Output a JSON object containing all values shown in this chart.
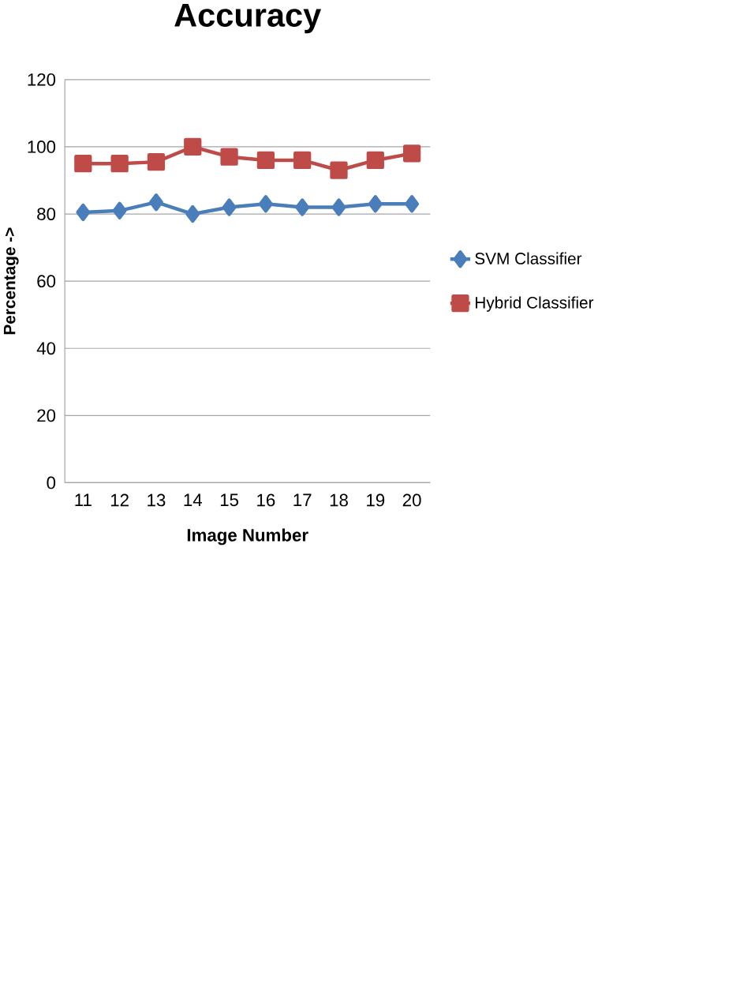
{
  "chart_data": {
    "type": "line",
    "title": "Accuracy",
    "xlabel": "Image Number",
    "ylabel": "Percentage ->",
    "categories": [
      "11",
      "12",
      "13",
      "14",
      "15",
      "16",
      "17",
      "18",
      "19",
      "20"
    ],
    "series": [
      {
        "name": "SVM Classifier",
        "color": "#4a7ebb",
        "marker": "diamond",
        "values": [
          80.5,
          81,
          83.5,
          80,
          82,
          83,
          82,
          82,
          83,
          83
        ]
      },
      {
        "name": "Hybrid Classifier",
        "color": "#be4b48",
        "marker": "square",
        "values": [
          95,
          95,
          95.5,
          100,
          97,
          96,
          96,
          93,
          96,
          98
        ]
      }
    ],
    "ylim": [
      0,
      120
    ],
    "yticks": [
      0,
      20,
      40,
      60,
      80,
      100,
      120
    ],
    "grid": "y",
    "legend": "right",
    "line_style": "solid"
  }
}
